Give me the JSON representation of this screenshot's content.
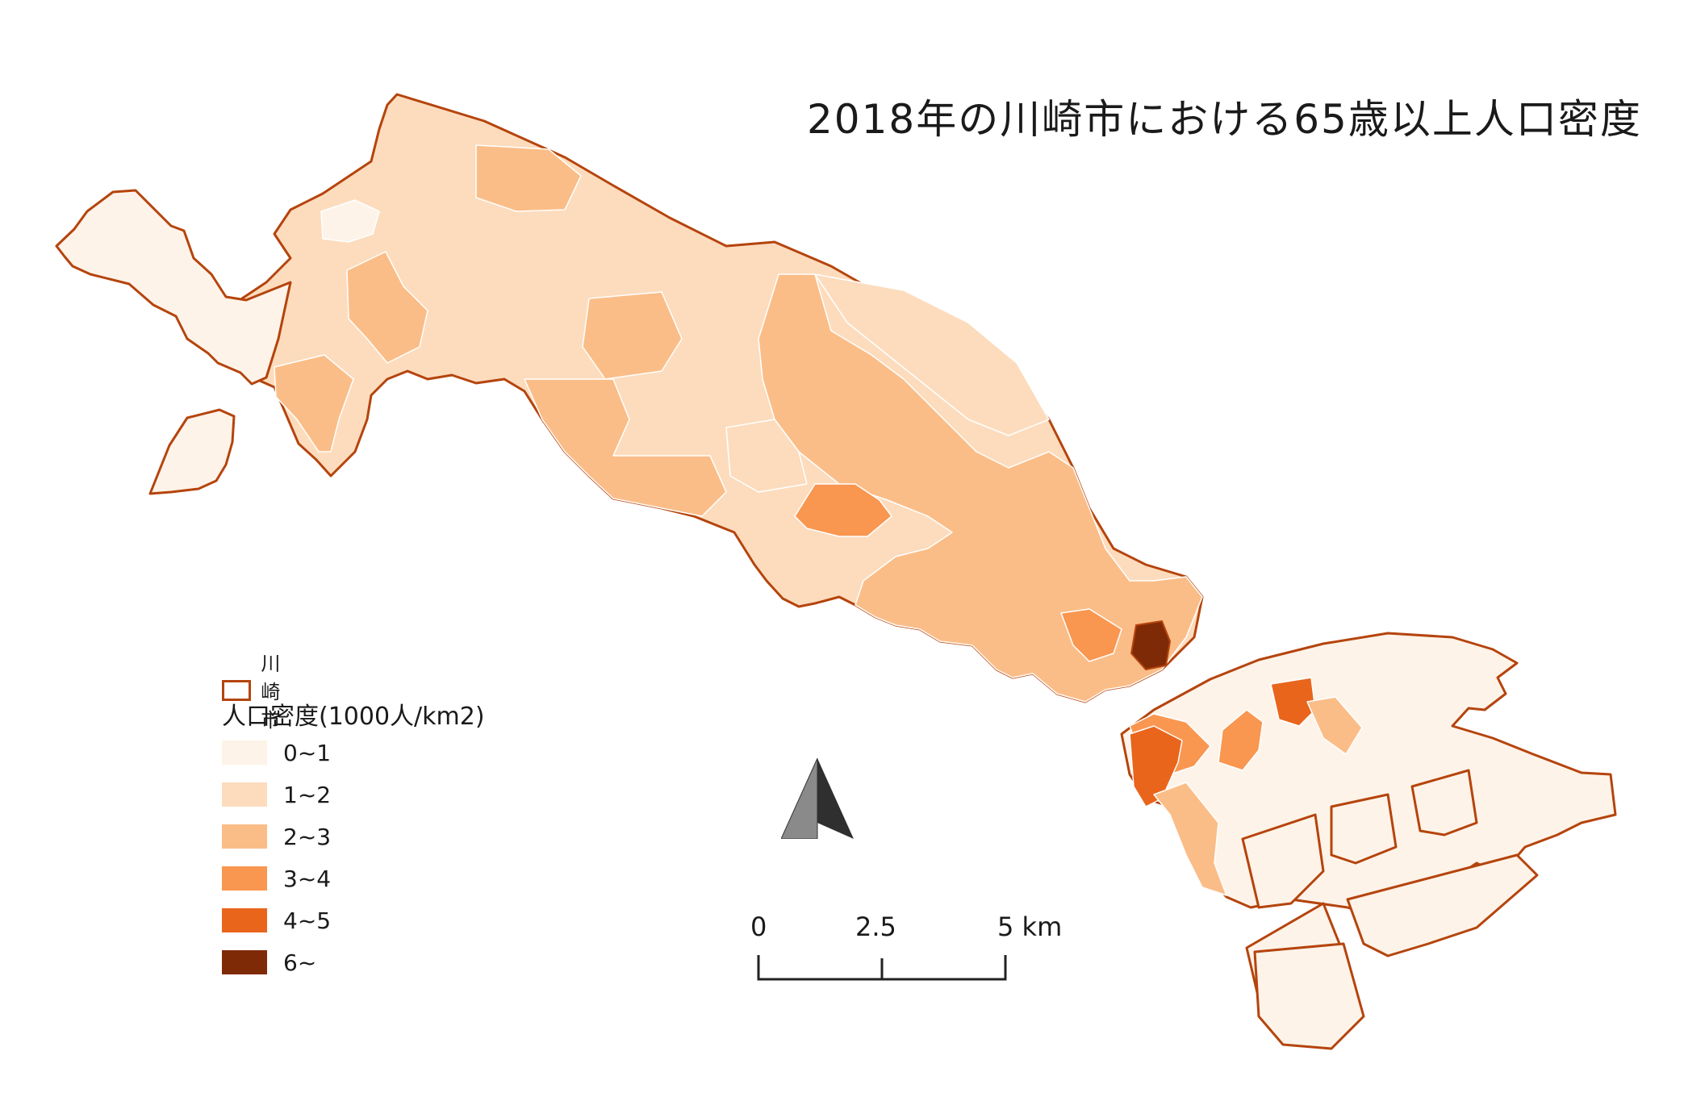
{
  "title": "2018年の川崎市における65歳以上人口密度",
  "legend": {
    "boundary_label": "川崎市",
    "boundary_color": "#b5440d",
    "title": "人口密度(1000人/km2)",
    "classes": [
      {
        "label": "0~1",
        "color": "#fef3e8"
      },
      {
        "label": "1~2",
        "color": "#fcdcbd"
      },
      {
        "label": "2~3",
        "color": "#fbbd87"
      },
      {
        "label": "3~4",
        "color": "#f99650"
      },
      {
        "label": "4~5",
        "color": "#e9651c"
      },
      {
        "label": "6~",
        "color": "#7f2a07"
      }
    ]
  },
  "scalebar": {
    "ticks": [
      "0",
      "2.5",
      "5 km"
    ]
  },
  "north_arrow": {
    "icon": "north-arrow-icon"
  }
}
